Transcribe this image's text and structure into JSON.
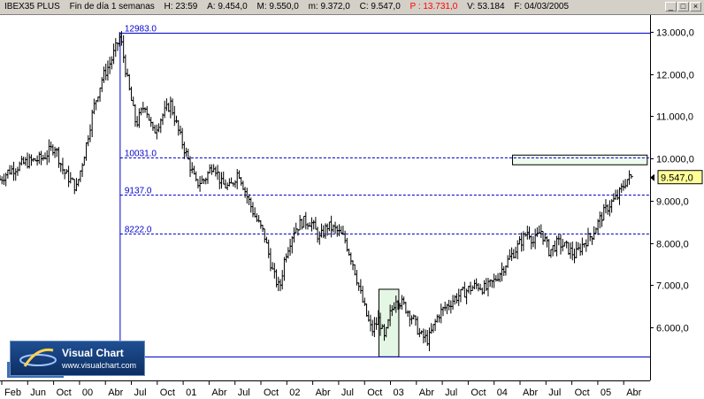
{
  "window": {
    "symbol": "IBEX35 PLUS",
    "period": "Fin de día 1 semanas",
    "high": "H: 23:59",
    "ask": "A: 9.454,0",
    "max": "M: 9.550,0",
    "min": "m: 9.372,0",
    "close": "C: 9.547,0",
    "points": "P : 13.731,0",
    "volume": "V: 53.184",
    "date": "F: 04/03/2005",
    "buttons": [
      "_",
      "□",
      "×"
    ]
  },
  "logo": {
    "title": "Visual Chart",
    "url": "www.visualchart.com"
  },
  "colors": {
    "level_line": "#0000cc",
    "price_label_bg": "#ffff99",
    "highlight_fill": "#e4f7e4",
    "resistance_fill": "#eefcee",
    "candle": "#000000"
  },
  "chart_data": {
    "type": "ohlc",
    "x_ticks": [
      "Feb",
      "Jun",
      "Oct",
      "00",
      "Abr",
      "Jul",
      "Oct",
      "01",
      "Abr",
      "Jul",
      "Oct",
      "02",
      "Abr",
      "Jul",
      "Oct",
      "03",
      "Abr",
      "Jul",
      "Oct",
      "04",
      "Abr",
      "Jul",
      "Oct",
      "05",
      "Abr"
    ],
    "y_ticks": [
      "13.000,0",
      "12.000,0",
      "11.000,0",
      "10.000,0",
      "9.000,0",
      "8.000,0",
      "7.000,0",
      "6.000,0"
    ],
    "y_values": [
      13000,
      12000,
      11000,
      10000,
      9000,
      8000,
      7000,
      6000
    ],
    "ylim": [
      5200,
      13300
    ],
    "current_price_label": "9.547,0",
    "current_price": 9547,
    "levels": [
      {
        "label": "12983.0",
        "value": 12983,
        "style": "solid"
      },
      {
        "label": "10031.0",
        "value": 10031,
        "style": "dashed"
      },
      {
        "label": "9137.0",
        "value": 9137,
        "style": "dashed"
      },
      {
        "label": "8222.0",
        "value": 8222,
        "style": "dashed"
      },
      {
        "label": "",
        "value": 5300,
        "style": "solid"
      }
    ],
    "anchors": [
      [
        "1999-01-01",
        9500
      ],
      [
        "1999-02-01",
        9700
      ],
      [
        "1999-04-01",
        9900
      ],
      [
        "1999-06-01",
        10000
      ],
      [
        "1999-07-15",
        10300
      ],
      [
        "1999-08-15",
        9700
      ],
      [
        "1999-10-01",
        9300
      ],
      [
        "1999-11-01",
        10200
      ],
      [
        "1999-12-01",
        11200
      ],
      [
        "2000-01-01",
        11900
      ],
      [
        "2000-02-01",
        12300
      ],
      [
        "2000-03-05",
        12900
      ],
      [
        "2000-04-01",
        11800
      ],
      [
        "2000-05-01",
        10800
      ],
      [
        "2000-06-01",
        11300
      ],
      [
        "2000-07-01",
        10600
      ],
      [
        "2000-08-01",
        11000
      ],
      [
        "2000-09-01",
        11300
      ],
      [
        "2000-10-01",
        10600
      ],
      [
        "2000-11-01",
        10000
      ],
      [
        "2000-12-01",
        9400
      ],
      [
        "2001-01-01",
        9500
      ],
      [
        "2001-02-01",
        9900
      ],
      [
        "2001-03-01",
        9400
      ],
      [
        "2001-04-01",
        9300
      ],
      [
        "2001-05-01",
        9700
      ],
      [
        "2001-06-01",
        9100
      ],
      [
        "2001-07-01",
        8600
      ],
      [
        "2001-08-01",
        8200
      ],
      [
        "2001-09-01",
        7300
      ],
      [
        "2001-09-25",
        6900
      ],
      [
        "2001-10-15",
        7700
      ],
      [
        "2001-11-15",
        8300
      ],
      [
        "2001-12-15",
        8500
      ],
      [
        "2002-01-15",
        8500
      ],
      [
        "2002-02-15",
        8100
      ],
      [
        "2002-03-15",
        8400
      ],
      [
        "2002-04-15",
        8300
      ],
      [
        "2002-05-15",
        8100
      ],
      [
        "2002-06-15",
        7500
      ],
      [
        "2002-07-15",
        6700
      ],
      [
        "2002-08-01",
        6300
      ],
      [
        "2002-08-20",
        5900
      ],
      [
        "2002-09-15",
        6200
      ],
      [
        "2002-10-05",
        5700
      ],
      [
        "2002-10-25",
        6300
      ],
      [
        "2002-11-15",
        6700
      ],
      [
        "2002-12-15",
        6500
      ],
      [
        "2003-01-15",
        6200
      ],
      [
        "2003-02-10",
        5800
      ],
      [
        "2003-03-10",
        5700
      ],
      [
        "2003-04-15",
        6300
      ],
      [
        "2003-05-15",
        6500
      ],
      [
        "2003-06-15",
        6700
      ],
      [
        "2003-08-01",
        6900
      ],
      [
        "2003-09-01",
        7000
      ],
      [
        "2003-10-01",
        6900
      ],
      [
        "2003-11-01",
        7100
      ],
      [
        "2003-12-01",
        7400
      ],
      [
        "2004-01-01",
        7700
      ],
      [
        "2004-02-01",
        8000
      ],
      [
        "2004-03-01",
        8300
      ],
      [
        "2004-03-20",
        8000
      ],
      [
        "2004-04-15",
        8300
      ],
      [
        "2004-05-15",
        7800
      ],
      [
        "2004-06-15",
        8000
      ],
      [
        "2004-07-15",
        7900
      ],
      [
        "2004-08-15",
        7700
      ],
      [
        "2004-09-15",
        8000
      ],
      [
        "2004-10-15",
        8200
      ],
      [
        "2004-11-15",
        8600
      ],
      [
        "2004-12-15",
        8900
      ],
      [
        "2005-01-15",
        9100
      ],
      [
        "2005-02-15",
        9500
      ],
      [
        "2005-03-04",
        9547
      ]
    ],
    "highlight_boxes": [
      {
        "from": "2002-09-15",
        "to": "2002-11-25",
        "low": 5300,
        "high": 6900,
        "fill": "#e4f7e4"
      },
      {
        "from": "2004-01-05",
        "to": "2005-04-30",
        "low": 9850,
        "high": 10080,
        "fill": "#eefcee"
      }
    ],
    "vertical_line": {
      "date": "2000-03-05"
    }
  }
}
